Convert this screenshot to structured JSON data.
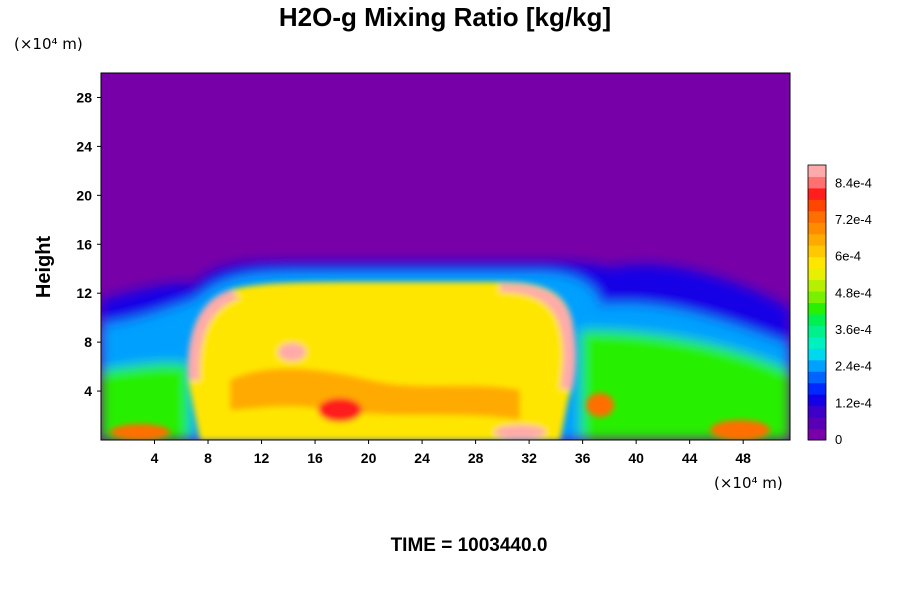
{
  "chart_data": {
    "type": "heatmap",
    "title": "H2O-g Mixing Ratio [kg/kg]",
    "ylabel": "Height",
    "x_unit_label": "(×10⁴ m)",
    "y_unit_label": "(×10⁴ m)",
    "footer": "TIME = 1003440.0",
    "xlim": [
      0,
      51.5
    ],
    "ylim": [
      0,
      30
    ],
    "x_ticks": [
      4,
      8,
      12,
      16,
      20,
      24,
      28,
      32,
      36,
      40,
      44,
      48
    ],
    "x_tick_labels": [
      "4",
      "8",
      "12",
      "16",
      "20",
      "24",
      "28",
      "32",
      "36",
      "40",
      "44",
      "48"
    ],
    "y_ticks": [
      4,
      8,
      12,
      16,
      20,
      24,
      28
    ],
    "y_tick_labels": [
      "4",
      "8",
      "12",
      "16",
      "20",
      "24",
      "28"
    ],
    "colorbar": {
      "min": 0,
      "max": 0.0009,
      "ticks": [
        0,
        0.00012,
        0.00024,
        0.00036,
        0.00048,
        0.0006,
        0.00072,
        0.00084
      ],
      "tick_labels": [
        "0",
        "1.2e-4",
        "2.4e-4",
        "3.6e-4",
        "4.8e-4",
        "6e-4",
        "7.2e-4",
        "8.4e-4"
      ],
      "colors": [
        "#7800a8",
        "#5a00b4",
        "#3c00c8",
        "#1400e6",
        "#0028ff",
        "#0064ff",
        "#00a0ff",
        "#00d8f0",
        "#00f0c0",
        "#00f08c",
        "#00f050",
        "#28f000",
        "#78f000",
        "#b4f000",
        "#e6f000",
        "#ffe600",
        "#ffc800",
        "#ffaa00",
        "#ff8c00",
        "#ff6e00",
        "#ff4600",
        "#ff1e1e",
        "#ff7070",
        "#ffaaaa"
      ]
    },
    "field_description_points": {
      "dry_top_value": 0.0,
      "moist_dome_x_range": [
        7,
        35
      ],
      "moist_dome_top_height": 14,
      "boundary_layer_top_height": 6
    }
  }
}
